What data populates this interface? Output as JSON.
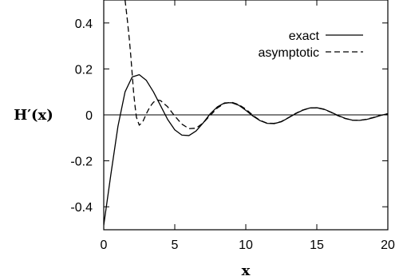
{
  "chart_data": {
    "type": "line",
    "title": "",
    "xlabel": "x",
    "ylabel": "H′(x)",
    "xlim": [
      0,
      20
    ],
    "ylim": [
      -0.5,
      0.5
    ],
    "xticks": [
      "0",
      "5",
      "10",
      "15",
      "20"
    ],
    "yticks": [
      "-0.4",
      "-0.2",
      "0",
      "0.2",
      "0.4"
    ],
    "grid": false,
    "legend_position": "top-right",
    "series": [
      {
        "name": "exact",
        "style": "solid",
        "color": "#000000",
        "x": [
          0,
          0.5,
          1.0,
          1.5,
          2.0,
          2.5,
          3.0,
          3.5,
          4.0,
          4.5,
          5.0,
          5.5,
          6.0,
          6.5,
          7.0,
          7.5,
          8.0,
          8.5,
          9.0,
          9.5,
          10.0,
          10.5,
          11.0,
          11.5,
          12.0,
          12.5,
          13.0,
          13.5,
          14.0,
          14.5,
          15.0,
          15.5,
          16.0,
          16.5,
          17.0,
          17.5,
          18.0,
          18.5,
          19.0,
          19.5,
          20.0
        ],
        "y": [
          -0.48,
          -0.26,
          -0.05,
          0.1,
          0.165,
          0.175,
          0.15,
          0.1,
          0.04,
          -0.02,
          -0.065,
          -0.088,
          -0.09,
          -0.07,
          -0.035,
          0.005,
          0.035,
          0.052,
          0.053,
          0.042,
          0.02,
          -0.005,
          -0.025,
          -0.037,
          -0.038,
          -0.03,
          -0.013,
          0.005,
          0.02,
          0.03,
          0.031,
          0.025,
          0.012,
          -0.003,
          -0.015,
          -0.023,
          -0.024,
          -0.02,
          -0.012,
          -0.002,
          0.005
        ]
      },
      {
        "name": "asymptotic",
        "style": "dashed",
        "color": "#000000",
        "x": [
          1.5,
          1.65,
          1.8,
          1.9,
          2.0,
          2.1,
          2.2,
          2.3,
          2.5,
          2.75,
          3.0,
          3.25,
          3.5,
          3.75,
          4.0,
          4.5,
          5.0,
          5.5,
          6.0,
          6.5,
          7.0,
          7.5,
          8.0,
          8.5,
          9.0,
          9.5,
          10.0,
          10.5,
          11.0,
          11.5,
          12.0,
          12.5,
          13.0,
          13.5,
          14.0,
          14.5,
          15.0,
          15.5,
          16.0,
          16.5,
          17.0,
          17.5,
          18.0,
          18.5,
          19.0,
          19.5,
          20.0
        ],
        "y": [
          0.5,
          0.42,
          0.33,
          0.26,
          0.18,
          0.1,
          0.04,
          -0.01,
          -0.045,
          -0.03,
          0.005,
          0.035,
          0.055,
          0.065,
          0.062,
          0.035,
          -0.005,
          -0.04,
          -0.06,
          -0.058,
          -0.035,
          -0.002,
          0.03,
          0.05,
          0.055,
          0.045,
          0.025,
          -0.002,
          -0.024,
          -0.036,
          -0.037,
          -0.029,
          -0.012,
          0.006,
          0.021,
          0.03,
          0.031,
          0.024,
          0.011,
          -0.004,
          -0.016,
          -0.023,
          -0.024,
          -0.019,
          -0.011,
          -0.002,
          0.005
        ]
      }
    ]
  }
}
